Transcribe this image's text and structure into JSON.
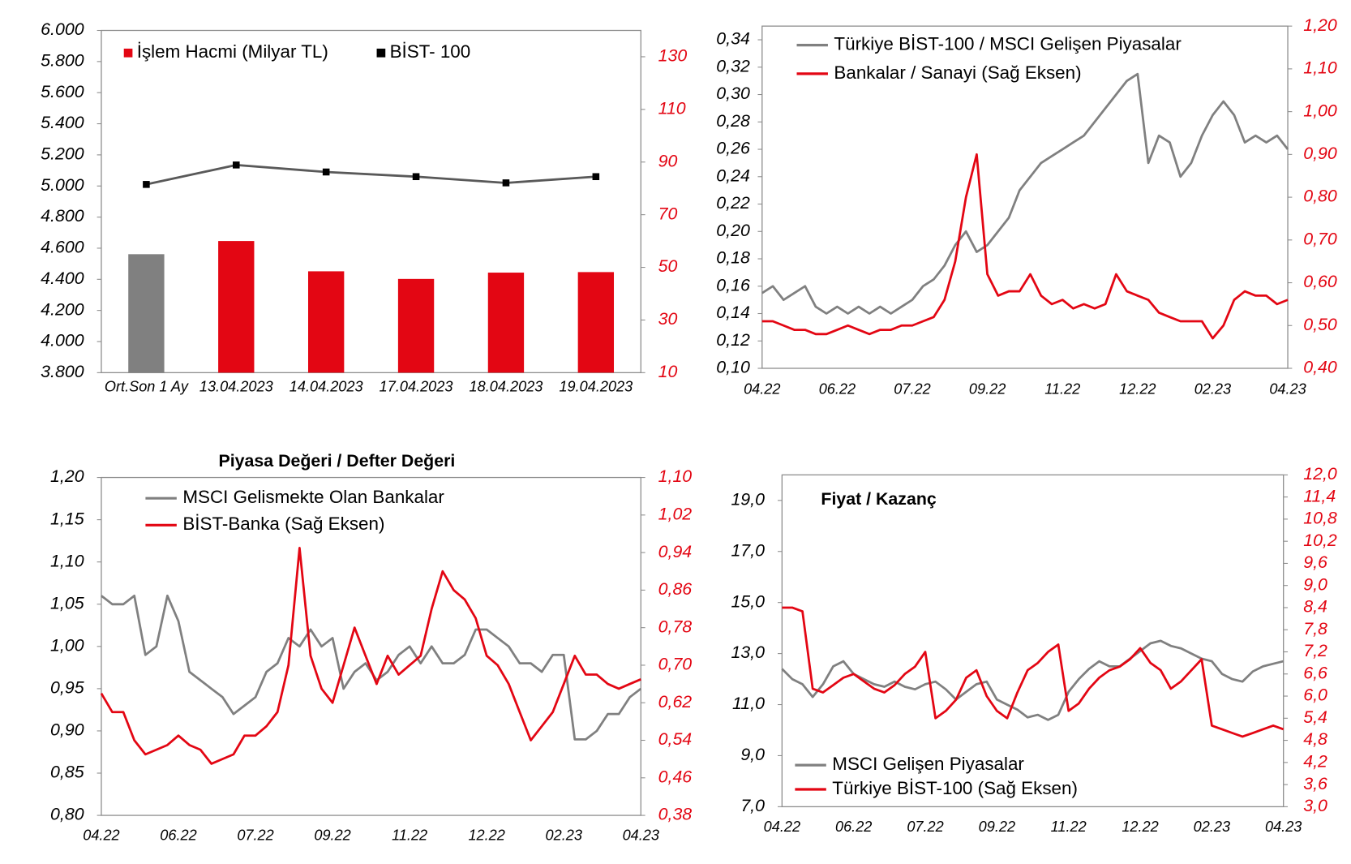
{
  "chart_data": [
    {
      "type": "bar",
      "categories": [
        "Ort.Son 1 Ay",
        "13.04.2023",
        "14.04.2023",
        "17.04.2023",
        "18.04.2023",
        "19.04.2023"
      ],
      "series": [
        {
          "name": "İşlem Hacmi (Milyar TL)",
          "type": "bar",
          "axis": "y2",
          "color": "#e30613",
          "colors": [
            "#808080",
            "#e30613",
            "#e30613",
            "#e30613",
            "#e30613",
            "#e30613"
          ],
          "values": [
            55,
            60,
            48.5,
            45.6,
            48,
            48.2
          ]
        },
        {
          "name": "BİST- 100",
          "type": "line",
          "axis": "y",
          "color": "#595959",
          "marker_color": "#000000",
          "values": [
            5010,
            5135,
            5090,
            5060,
            5020,
            5060
          ]
        }
      ],
      "ylim": [
        3800,
        6000
      ],
      "yticks": [
        {
          "value": 3800,
          "label": "3.800"
        },
        {
          "value": 4000,
          "label": "4.000"
        },
        {
          "value": 4200,
          "label": "4.200"
        },
        {
          "value": 4400,
          "label": "4.400"
        },
        {
          "value": 4600,
          "label": "4.600"
        },
        {
          "value": 4800,
          "label": "4.800"
        },
        {
          "value": 5000,
          "label": "5.000"
        },
        {
          "value": 5200,
          "label": "5.200"
        },
        {
          "value": 5400,
          "label": "5.400"
        },
        {
          "value": 5600,
          "label": "5.600"
        },
        {
          "value": 5800,
          "label": "5.800"
        },
        {
          "value": 6000,
          "label": "6.000"
        }
      ],
      "y2lim": [
        10,
        140
      ],
      "y2ticks": [
        10,
        30,
        50,
        70,
        90,
        110,
        130
      ],
      "y2tick_color": "#e30613"
    },
    {
      "type": "line",
      "categories": [
        "04.22",
        null,
        null,
        null,
        null,
        null,
        null,
        "06.22",
        null,
        null,
        null,
        null,
        null,
        null,
        "07.22",
        null,
        null,
        null,
        null,
        null,
        null,
        "09.22",
        null,
        null,
        null,
        null,
        null,
        null,
        "11.22",
        null,
        null,
        null,
        null,
        null,
        null,
        "12.22",
        null,
        null,
        null,
        null,
        null,
        null,
        "02.23",
        null,
        null,
        null,
        null,
        null,
        null,
        "04.23"
      ],
      "series": [
        {
          "name": "Türkiye BİST-100 / MSCI Gelişen Piyasalar",
          "axis": "y",
          "color": "#808080",
          "values": [
            0.155,
            0.16,
            0.15,
            0.155,
            0.16,
            0.145,
            0.14,
            0.145,
            0.14,
            0.145,
            0.14,
            0.145,
            0.14,
            0.145,
            0.15,
            0.16,
            0.165,
            0.175,
            0.19,
            0.2,
            0.185,
            0.19,
            0.2,
            0.21,
            0.23,
            0.24,
            0.25,
            0.255,
            0.26,
            0.265,
            0.27,
            0.28,
            0.29,
            0.3,
            0.31,
            0.315,
            0.25,
            0.27,
            0.265,
            0.24,
            0.25,
            0.27,
            0.285,
            0.295,
            0.285,
            0.265,
            0.27,
            0.265,
            0.27,
            0.26
          ]
        },
        {
          "name": "Bankalar / Sanayi (Sağ Eksen)",
          "axis": "y2",
          "color": "#e30613",
          "values": [
            0.51,
            0.51,
            0.5,
            0.49,
            0.49,
            0.48,
            0.48,
            0.49,
            0.5,
            0.49,
            0.48,
            0.49,
            0.49,
            0.5,
            0.5,
            0.51,
            0.52,
            0.56,
            0.65,
            0.8,
            0.9,
            0.62,
            0.57,
            0.58,
            0.58,
            0.62,
            0.57,
            0.55,
            0.56,
            0.54,
            0.55,
            0.54,
            0.55,
            0.62,
            0.58,
            0.57,
            0.56,
            0.53,
            0.52,
            0.51,
            0.51,
            0.51,
            0.47,
            0.5,
            0.56,
            0.58,
            0.57,
            0.57,
            0.55,
            0.56
          ]
        }
      ],
      "ylim": [
        0.1,
        0.35
      ],
      "yticks": [
        {
          "value": 0.1,
          "label": "0,10"
        },
        {
          "value": 0.12,
          "label": "0,12"
        },
        {
          "value": 0.14,
          "label": "0,14"
        },
        {
          "value": 0.16,
          "label": "0,16"
        },
        {
          "value": 0.18,
          "label": "0,18"
        },
        {
          "value": 0.2,
          "label": "0,20"
        },
        {
          "value": 0.22,
          "label": "0,22"
        },
        {
          "value": 0.24,
          "label": "0,24"
        },
        {
          "value": 0.26,
          "label": "0,26"
        },
        {
          "value": 0.28,
          "label": "0,28"
        },
        {
          "value": 0.3,
          "label": "0,30"
        },
        {
          "value": 0.32,
          "label": "0,32"
        },
        {
          "value": 0.34,
          "label": "0,34"
        }
      ],
      "y2lim": [
        0.4,
        1.2
      ],
      "y2ticks": [
        {
          "value": 0.4,
          "label": "0,40"
        },
        {
          "value": 0.5,
          "label": "0,50"
        },
        {
          "value": 0.6,
          "label": "0,60"
        },
        {
          "value": 0.7,
          "label": "0,70"
        },
        {
          "value": 0.8,
          "label": "0,80"
        },
        {
          "value": 0.9,
          "label": "0,90"
        },
        {
          "value": 1.0,
          "label": "1,00"
        },
        {
          "value": 1.1,
          "label": "1,10"
        },
        {
          "value": 1.2,
          "label": "1,20"
        }
      ],
      "y2tick_color": "#e30613"
    },
    {
      "type": "line",
      "title": "Piyasa Değeri / Defter Değeri",
      "categories": [
        "04.22",
        null,
        null,
        null,
        null,
        null,
        null,
        "06.22",
        null,
        null,
        null,
        null,
        null,
        null,
        "07.22",
        null,
        null,
        null,
        null,
        null,
        null,
        "09.22",
        null,
        null,
        null,
        null,
        null,
        null,
        "11.22",
        null,
        null,
        null,
        null,
        null,
        null,
        "12.22",
        null,
        null,
        null,
        null,
        null,
        null,
        "02.23",
        null,
        null,
        null,
        null,
        null,
        null,
        "04.23"
      ],
      "series": [
        {
          "name": "MSCI Gelismekte Olan Bankalar",
          "axis": "y",
          "color": "#808080",
          "values": [
            1.06,
            1.05,
            1.05,
            1.06,
            0.99,
            1.0,
            1.06,
            1.03,
            0.97,
            0.96,
            0.95,
            0.94,
            0.92,
            0.93,
            0.94,
            0.97,
            0.98,
            1.01,
            1.0,
            1.02,
            1.0,
            1.01,
            0.95,
            0.97,
            0.98,
            0.96,
            0.97,
            0.99,
            1.0,
            0.98,
            1.0,
            0.98,
            0.98,
            0.99,
            1.02,
            1.02,
            1.01,
            1.0,
            0.98,
            0.98,
            0.97,
            0.99,
            0.99,
            0.89,
            0.89,
            0.9,
            0.92,
            0.92,
            0.94,
            0.95
          ]
        },
        {
          "name": "BİST-Banka (Sağ Eksen)",
          "axis": "y2",
          "color": "#e30613",
          "values": [
            0.64,
            0.6,
            0.6,
            0.54,
            0.51,
            0.52,
            0.53,
            0.55,
            0.53,
            0.52,
            0.49,
            0.5,
            0.51,
            0.55,
            0.55,
            0.57,
            0.6,
            0.7,
            0.95,
            0.72,
            0.65,
            0.62,
            0.7,
            0.78,
            0.72,
            0.66,
            0.72,
            0.68,
            0.7,
            0.72,
            0.82,
            0.9,
            0.86,
            0.84,
            0.8,
            0.72,
            0.7,
            0.66,
            0.6,
            0.54,
            0.57,
            0.6,
            0.66,
            0.72,
            0.68,
            0.68,
            0.66,
            0.65,
            0.66,
            0.67
          ]
        }
      ],
      "ylim": [
        0.8,
        1.2
      ],
      "yticks": [
        {
          "value": 0.8,
          "label": "0,80"
        },
        {
          "value": 0.85,
          "label": "0,85"
        },
        {
          "value": 0.9,
          "label": "0,90"
        },
        {
          "value": 0.95,
          "label": "0,95"
        },
        {
          "value": 1.0,
          "label": "1,00"
        },
        {
          "value": 1.05,
          "label": "1,05"
        },
        {
          "value": 1.1,
          "label": "1,10"
        },
        {
          "value": 1.15,
          "label": "1,15"
        },
        {
          "value": 1.2,
          "label": "1,20"
        }
      ],
      "y2lim": [
        0.38,
        1.1
      ],
      "y2ticks": [
        {
          "value": 0.38,
          "label": "0,38"
        },
        {
          "value": 0.46,
          "label": "0,46"
        },
        {
          "value": 0.54,
          "label": "0,54"
        },
        {
          "value": 0.62,
          "label": "0,62"
        },
        {
          "value": 0.7,
          "label": "0,70"
        },
        {
          "value": 0.78,
          "label": "0,78"
        },
        {
          "value": 0.86,
          "label": "0,86"
        },
        {
          "value": 0.94,
          "label": "0,94"
        },
        {
          "value": 1.02,
          "label": "1,02"
        },
        {
          "value": 1.1,
          "label": "1,10"
        }
      ],
      "y2tick_color": "#e30613"
    },
    {
      "type": "line",
      "title": "Fiyat / Kazanç",
      "categories": [
        "04.22",
        null,
        null,
        null,
        null,
        null,
        null,
        "06.22",
        null,
        null,
        null,
        null,
        null,
        null,
        "07.22",
        null,
        null,
        null,
        null,
        null,
        null,
        "09.22",
        null,
        null,
        null,
        null,
        null,
        null,
        "11.22",
        null,
        null,
        null,
        null,
        null,
        null,
        "12.22",
        null,
        null,
        null,
        null,
        null,
        null,
        "02.23",
        null,
        null,
        null,
        null,
        null,
        null,
        "04.23"
      ],
      "series": [
        {
          "name": "MSCI Gelişen Piyasalar",
          "axis": "y",
          "color": "#808080",
          "values": [
            12.4,
            12.0,
            11.8,
            11.3,
            11.8,
            12.5,
            12.7,
            12.2,
            12.0,
            11.8,
            11.7,
            11.9,
            11.7,
            11.6,
            11.8,
            11.9,
            11.6,
            11.2,
            11.5,
            11.8,
            11.9,
            11.2,
            11.0,
            10.8,
            10.5,
            10.6,
            10.4,
            10.6,
            11.5,
            12.0,
            12.4,
            12.7,
            12.5,
            12.5,
            12.8,
            13.1,
            13.4,
            13.5,
            13.3,
            13.2,
            13.0,
            12.8,
            12.7,
            12.2,
            12.0,
            11.9,
            12.3,
            12.5,
            12.6,
            12.7
          ]
        },
        {
          "name": "Türkiye BİST-100 (Sağ Eksen)",
          "axis": "y2",
          "color": "#e30613",
          "values": [
            8.4,
            8.4,
            8.3,
            6.2,
            6.1,
            6.3,
            6.5,
            6.6,
            6.4,
            6.2,
            6.1,
            6.3,
            6.6,
            6.8,
            7.2,
            5.4,
            5.6,
            5.9,
            6.5,
            6.7,
            6.0,
            5.6,
            5.4,
            6.1,
            6.7,
            6.9,
            7.2,
            7.4,
            5.6,
            5.8,
            6.2,
            6.5,
            6.7,
            6.8,
            7.0,
            7.3,
            6.9,
            6.7,
            6.2,
            6.4,
            6.7,
            7.0,
            5.2,
            5.1,
            5.0,
            4.9,
            5.0,
            5.1,
            5.2,
            5.1
          ]
        }
      ],
      "ylim": [
        7,
        20
      ],
      "yticks": [
        {
          "value": 7,
          "label": "7,0"
        },
        {
          "value": 9,
          "label": "9,0"
        },
        {
          "value": 11,
          "label": "11,0"
        },
        {
          "value": 13,
          "label": "13,0"
        },
        {
          "value": 15,
          "label": "15,0"
        },
        {
          "value": 17,
          "label": "17,0"
        },
        {
          "value": 19,
          "label": "19,0"
        }
      ],
      "y2lim": [
        3,
        12
      ],
      "y2ticks": [
        {
          "value": 3.0,
          "label": "3,0"
        },
        {
          "value": 3.6,
          "label": "3,6"
        },
        {
          "value": 4.2,
          "label": "4,2"
        },
        {
          "value": 4.8,
          "label": "4,8"
        },
        {
          "value": 5.4,
          "label": "5,4"
        },
        {
          "value": 6.0,
          "label": "6,0"
        },
        {
          "value": 6.6,
          "label": "6,6"
        },
        {
          "value": 7.2,
          "label": "7,2"
        },
        {
          "value": 7.8,
          "label": "7,8"
        },
        {
          "value": 8.4,
          "label": "8,4"
        },
        {
          "value": 9.0,
          "label": "9,0"
        },
        {
          "value": 9.6,
          "label": "9,6"
        },
        {
          "value": 10.2,
          "label": "10,2"
        },
        {
          "value": 10.8,
          "label": "10,8"
        },
        {
          "value": 11.4,
          "label": "11,4"
        },
        {
          "value": 12.0,
          "label": "12,0"
        }
      ],
      "y2tick_color": "#e30613"
    }
  ]
}
